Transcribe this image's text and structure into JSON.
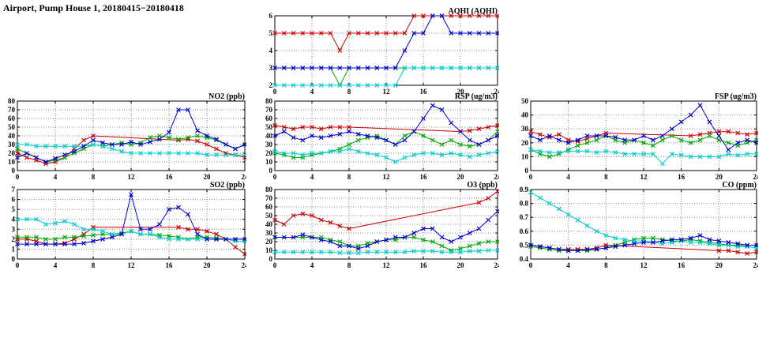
{
  "page_title": "Airport, Pump House 1, 20180415−20180418",
  "colors": {
    "red": "#cc0000",
    "blue": "#0000cc",
    "green": "#00aa00",
    "cyan": "#00cccc"
  },
  "chart_data": [
    {
      "type": "line",
      "title": "AQHI (AQHI)",
      "xmin": 0,
      "xmax": 24,
      "xticks": [
        0,
        4,
        8,
        12,
        16,
        20,
        24
      ],
      "ymin": 2,
      "ymax": 6,
      "yticks": [
        2,
        3,
        4,
        5,
        6
      ],
      "series": [
        {
          "name": "red",
          "color": "red",
          "values": [
            5,
            5,
            5,
            5,
            5,
            5,
            5,
            4,
            5,
            5,
            5,
            5,
            5,
            5,
            5,
            6,
            6,
            6,
            6,
            6,
            6,
            6,
            6,
            6,
            6
          ]
        },
        {
          "name": "green",
          "color": "green",
          "values": [
            3,
            3,
            3,
            3,
            3,
            3,
            3,
            2,
            3,
            3,
            3,
            3,
            3,
            3,
            3,
            3,
            3,
            3,
            3,
            3,
            3,
            3,
            3,
            3,
            3
          ]
        },
        {
          "name": "cyan",
          "color": "cyan",
          "values": [
            2,
            2,
            2,
            2,
            2,
            2,
            2,
            2,
            2,
            2,
            2,
            2,
            2,
            2,
            3,
            3,
            3,
            3,
            3,
            3,
            3,
            3,
            3,
            3,
            3
          ]
        },
        {
          "name": "blue",
          "color": "blue",
          "values": [
            3,
            3,
            3,
            3,
            3,
            3,
            3,
            3,
            3,
            3,
            3,
            3,
            3,
            3,
            4,
            5,
            5,
            6,
            6,
            5,
            5,
            5,
            5,
            5,
            5
          ]
        }
      ]
    },
    {
      "type": "line",
      "title": "NO2 (ppb)",
      "xmin": 0,
      "xmax": 24,
      "xticks": [
        0,
        4,
        8,
        12,
        16,
        20,
        24
      ],
      "ymin": 0,
      "ymax": 80,
      "yticks": [
        0,
        10,
        20,
        30,
        40,
        50,
        60,
        70,
        80
      ],
      "series": [
        {
          "name": "red",
          "color": "red",
          "values": [
            20,
            15,
            12,
            8,
            10,
            15,
            25,
            35,
            40,
            null,
            null,
            null,
            null,
            null,
            null,
            null,
            null,
            35,
            36,
            34,
            30,
            25,
            20,
            18,
            15
          ]
        },
        {
          "name": "green",
          "color": "green",
          "values": [
            25,
            20,
            15,
            10,
            12,
            15,
            20,
            25,
            30,
            28,
            30,
            32,
            30,
            32,
            38,
            40,
            38,
            36,
            38,
            40,
            38,
            35,
            30,
            25,
            30
          ]
        },
        {
          "name": "cyan",
          "color": "cyan",
          "values": [
            30,
            30,
            28,
            28,
            28,
            28,
            28,
            28,
            30,
            28,
            25,
            22,
            20,
            20,
            20,
            20,
            20,
            20,
            20,
            20,
            18,
            18,
            18,
            18,
            18
          ]
        },
        {
          "name": "blue",
          "color": "blue",
          "values": [
            15,
            20,
            15,
            10,
            14,
            18,
            22,
            28,
            35,
            32,
            30,
            30,
            33,
            30,
            33,
            36,
            44,
            70,
            70,
            46,
            40,
            36,
            30,
            25,
            30
          ]
        }
      ]
    },
    {
      "type": "line",
      "title": "RSP (ug/m3)",
      "xmin": 0,
      "xmax": 24,
      "xticks": [
        0,
        4,
        8,
        12,
        16,
        20,
        24
      ],
      "ymin": 0,
      "ymax": 80,
      "yticks": [
        0,
        10,
        20,
        30,
        40,
        50,
        60,
        70,
        80
      ],
      "series": [
        {
          "name": "red",
          "color": "red",
          "values": [
            52,
            50,
            48,
            50,
            50,
            48,
            50,
            50,
            50,
            null,
            null,
            null,
            null,
            null,
            null,
            null,
            null,
            null,
            null,
            null,
            45,
            46,
            48,
            50,
            52
          ]
        },
        {
          "name": "green",
          "color": "green",
          "values": [
            20,
            18,
            15,
            15,
            18,
            20,
            22,
            25,
            30,
            35,
            38,
            40,
            35,
            30,
            40,
            45,
            40,
            35,
            30,
            35,
            30,
            28,
            30,
            35,
            45
          ]
        },
        {
          "name": "cyan",
          "color": "cyan",
          "values": [
            22,
            20,
            20,
            18,
            20,
            20,
            22,
            22,
            25,
            22,
            20,
            18,
            15,
            10,
            15,
            18,
            20,
            20,
            18,
            20,
            18,
            16,
            18,
            20,
            22
          ]
        },
        {
          "name": "blue",
          "color": "blue",
          "values": [
            40,
            45,
            38,
            35,
            40,
            38,
            40,
            42,
            45,
            42,
            40,
            38,
            35,
            30,
            35,
            45,
            60,
            75,
            70,
            55,
            45,
            35,
            30,
            35,
            40
          ]
        }
      ]
    },
    {
      "type": "line",
      "title": "FSP (ug/m3)",
      "xmin": 0,
      "xmax": 24,
      "xticks": [
        0,
        4,
        8,
        12,
        16,
        20,
        24
      ],
      "ymin": 0,
      "ymax": 50,
      "yticks": [
        0,
        10,
        20,
        30,
        40,
        50
      ],
      "series": [
        {
          "name": "red",
          "color": "red",
          "values": [
            28,
            26,
            24,
            26,
            22,
            21,
            23,
            25,
            27,
            null,
            null,
            null,
            null,
            null,
            null,
            null,
            null,
            25,
            26,
            27,
            28,
            28,
            27,
            26,
            27
          ]
        },
        {
          "name": "green",
          "color": "green",
          "values": [
            15,
            12,
            10,
            12,
            15,
            18,
            20,
            22,
            25,
            22,
            20,
            22,
            20,
            18,
            22,
            25,
            22,
            20,
            22,
            25,
            22,
            20,
            18,
            20,
            22
          ]
        },
        {
          "name": "cyan",
          "color": "cyan",
          "values": [
            15,
            14,
            13,
            13,
            14,
            14,
            14,
            13,
            14,
            13,
            12,
            12,
            12,
            12,
            5,
            12,
            11,
            10,
            10,
            10,
            10,
            12,
            11,
            12,
            12
          ]
        },
        {
          "name": "blue",
          "color": "blue",
          "values": [
            25,
            22,
            25,
            22,
            20,
            22,
            25,
            25,
            25,
            24,
            22,
            22,
            25,
            22,
            25,
            30,
            35,
            40,
            47,
            35,
            25,
            15,
            20,
            22,
            20
          ]
        }
      ]
    },
    {
      "type": "line",
      "title": "SO2 (ppb)",
      "xmin": 0,
      "xmax": 24,
      "xticks": [
        0,
        4,
        8,
        12,
        16,
        20,
        24
      ],
      "ymin": 0,
      "ymax": 7,
      "yticks": [
        0,
        1,
        2,
        3,
        4,
        5,
        6,
        7
      ],
      "series": [
        {
          "name": "red",
          "color": "red",
          "values": [
            2,
            2,
            1.8,
            1.5,
            1.5,
            1.6,
            2,
            2.5,
            3.2,
            null,
            null,
            null,
            null,
            null,
            null,
            null,
            null,
            3.2,
            3,
            3,
            2.8,
            2.5,
            2,
            1.2,
            0.5
          ]
        },
        {
          "name": "green",
          "color": "green",
          "values": [
            2.2,
            2.2,
            2.2,
            2,
            2,
            2.2,
            2.2,
            2.3,
            2.4,
            2.5,
            2.5,
            2.6,
            2.8,
            2.5,
            2.5,
            2.4,
            2.3,
            2.2,
            2,
            2.2,
            2.2,
            2.1,
            2,
            2,
            2
          ]
        },
        {
          "name": "cyan",
          "color": "cyan",
          "values": [
            4,
            4,
            4,
            3.5,
            3.6,
            3.8,
            3.5,
            3,
            3,
            2.8,
            2.5,
            2.5,
            2.8,
            2.5,
            2.5,
            2.2,
            2,
            2,
            2,
            2,
            2,
            2,
            2,
            1.8,
            1.8
          ]
        },
        {
          "name": "blue",
          "color": "blue",
          "values": [
            1.5,
            1.5,
            1.5,
            1.5,
            1.5,
            1.5,
            1.5,
            1.6,
            1.8,
            2,
            2.2,
            2.5,
            6.5,
            3,
            3,
            3.5,
            5,
            5.2,
            4.5,
            2.5,
            2,
            2,
            2,
            2,
            2
          ]
        }
      ]
    },
    {
      "type": "line",
      "title": "O3 (ppb)",
      "xmin": 0,
      "xmax": 24,
      "xticks": [
        0,
        4,
        8,
        12,
        16,
        20,
        24
      ],
      "ymin": 0,
      "ymax": 80,
      "yticks": [
        0,
        10,
        20,
        30,
        40,
        50,
        60,
        70,
        80
      ],
      "series": [
        {
          "name": "red",
          "color": "red",
          "values": [
            45,
            40,
            50,
            52,
            50,
            45,
            42,
            38,
            35,
            null,
            null,
            null,
            null,
            null,
            null,
            null,
            null,
            null,
            null,
            null,
            null,
            null,
            65,
            70,
            78
          ]
        },
        {
          "name": "green",
          "color": "green",
          "values": [
            25,
            25,
            25,
            25,
            25,
            25,
            22,
            20,
            15,
            15,
            18,
            20,
            22,
            22,
            25,
            25,
            22,
            20,
            15,
            10,
            12,
            15,
            18,
            20,
            20
          ]
        },
        {
          "name": "cyan",
          "color": "cyan",
          "values": [
            8,
            8,
            8,
            8,
            8,
            8,
            8,
            7,
            7,
            7,
            8,
            8,
            8,
            8,
            8,
            9,
            9,
            9,
            8,
            8,
            8,
            9,
            9,
            10,
            10
          ]
        },
        {
          "name": "blue",
          "color": "blue",
          "values": [
            25,
            25,
            25,
            28,
            25,
            22,
            20,
            15,
            15,
            12,
            15,
            20,
            22,
            25,
            25,
            30,
            35,
            35,
            25,
            20,
            25,
            30,
            35,
            45,
            55
          ]
        }
      ]
    },
    {
      "type": "line",
      "title": "CO (ppm)",
      "xmin": 0,
      "xmax": 24,
      "xticks": [
        0,
        4,
        8,
        12,
        16,
        20,
        24
      ],
      "ymin": 0.4,
      "ymax": 0.9,
      "yticks": [
        0.4,
        0.5,
        0.6,
        0.7,
        0.8,
        0.9
      ],
      "series": [
        {
          "name": "red",
          "color": "red",
          "values": [
            0.5,
            0.49,
            0.48,
            0.47,
            0.47,
            0.47,
            0.47,
            0.48,
            0.5,
            null,
            null,
            null,
            null,
            null,
            null,
            null,
            null,
            null,
            null,
            null,
            0.46,
            0.46,
            0.45,
            0.44,
            0.45
          ]
        },
        {
          "name": "green",
          "color": "green",
          "values": [
            0.49,
            0.48,
            0.47,
            0.46,
            0.46,
            0.46,
            0.46,
            0.47,
            0.48,
            0.5,
            0.52,
            0.54,
            0.55,
            0.55,
            0.54,
            0.53,
            0.53,
            0.54,
            0.53,
            0.52,
            0.51,
            0.5,
            0.5,
            0.49,
            0.48
          ]
        },
        {
          "name": "cyan",
          "color": "cyan",
          "values": [
            0.88,
            0.84,
            0.8,
            0.76,
            0.72,
            0.68,
            0.64,
            0.6,
            0.57,
            0.55,
            0.54,
            0.53,
            0.53,
            0.52,
            0.51,
            0.52,
            0.53,
            0.52,
            0.52,
            0.51,
            0.5,
            0.5,
            0.49,
            0.49,
            0.48
          ]
        },
        {
          "name": "blue",
          "color": "blue",
          "values": [
            0.5,
            0.49,
            0.48,
            0.47,
            0.46,
            0.46,
            0.47,
            0.47,
            0.48,
            0.49,
            0.5,
            0.51,
            0.52,
            0.52,
            0.53,
            0.54,
            0.54,
            0.55,
            0.57,
            0.54,
            0.53,
            0.52,
            0.51,
            0.5,
            0.5
          ]
        }
      ]
    }
  ]
}
